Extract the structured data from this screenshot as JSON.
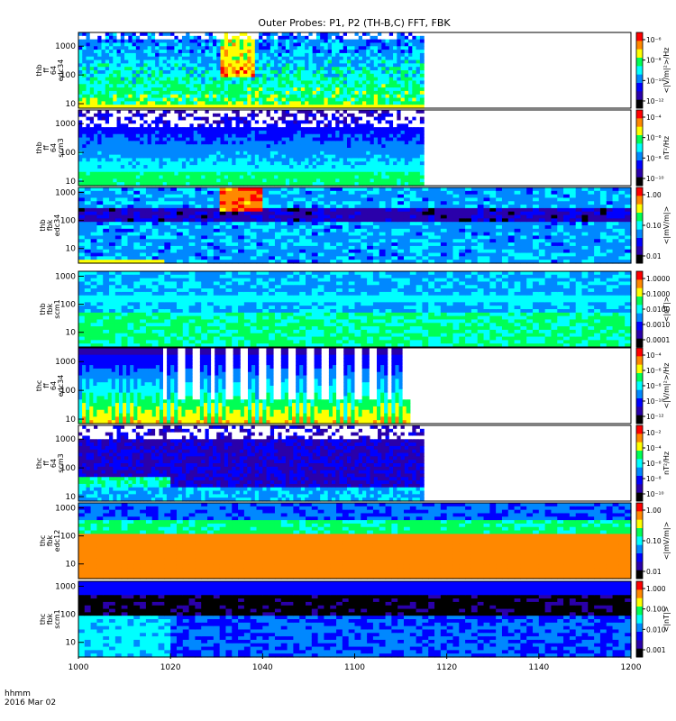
{
  "chart_data": {
    "type": "heatmap",
    "title": "Outer Probes: P1, P2 (TH-B,C) FFT, FBK",
    "time_axis": {
      "ticks": [
        "1000",
        "1020",
        "1040",
        "1100",
        "1120",
        "1140",
        "1200"
      ],
      "label_line1": "hhmm",
      "label_line2": "2016 Mar 02",
      "range_minutes": [
        0,
        120
      ]
    },
    "panels": [
      {
        "label": [
          "thb",
          "ff",
          "64",
          "edc34"
        ],
        "yticks": [
          "1000",
          "100",
          "10"
        ],
        "ylog": [
          7,
          3000
        ],
        "cb_unit": "<|V/m|²>/Hz",
        "cb_ticks": [
          "10⁻⁶",
          "10⁻⁸",
          "10⁻¹⁰",
          "10⁻¹²"
        ],
        "data_end_minute": 75,
        "pattern": "fft_e_b"
      },
      {
        "label": [
          "thb",
          "ff",
          "64",
          "scm3"
        ],
        "yticks": [
          "1000",
          "100",
          "10"
        ],
        "ylog": [
          7,
          3000
        ],
        "cb_unit": "nT²/Hz",
        "cb_ticks": [
          "10⁻⁴",
          "10⁻⁶",
          "10⁻⁸",
          "10⁻¹⁰"
        ],
        "data_end_minute": 75,
        "pattern": "fft_b_b"
      },
      {
        "label": [
          "thb",
          "fbk",
          "edc34"
        ],
        "yticks": [
          "1000",
          "100",
          "10"
        ],
        "ylog": [
          3,
          1500
        ],
        "cb_unit": "<|mV/m|>",
        "cb_ticks": [
          "1.00",
          "0.10",
          "0.01"
        ],
        "data_end_minute": 120,
        "pattern": "fbk_e_b"
      },
      {
        "label": [
          "thb",
          "fbk",
          "scm1"
        ],
        "yticks": [
          "1000",
          "100",
          "10"
        ],
        "ylog": [
          3,
          1500
        ],
        "cb_unit": "<|nT|>",
        "cb_ticks": [
          "1.0000",
          "0.1000",
          "0.0100",
          "0.0010",
          "0.0001"
        ],
        "data_end_minute": 120,
        "pattern": "fbk_b_b"
      },
      {
        "label": [
          "thc",
          "ff",
          "64",
          "edc34"
        ],
        "yticks": [
          "1000",
          "100",
          "10"
        ],
        "ylog": [
          7,
          3000
        ],
        "cb_unit": "<|V/m|²>/Hz",
        "cb_ticks": [
          "10⁻⁴",
          "10⁻⁶",
          "10⁻⁸",
          "10⁻¹⁰",
          "10⁻¹²"
        ],
        "data_end_minute": 72,
        "pattern": "fft_e_c"
      },
      {
        "label": [
          "thc",
          "ff",
          "64",
          "scm3"
        ],
        "yticks": [
          "1000",
          "100",
          "10"
        ],
        "ylog": [
          7,
          3000
        ],
        "cb_unit": "nT²/Hz",
        "cb_ticks": [
          "10⁻²",
          "10⁻⁴",
          "10⁻⁶",
          "10⁻⁸",
          "10⁻¹⁰"
        ],
        "data_end_minute": 75,
        "pattern": "fft_b_c"
      },
      {
        "label": [
          "thc",
          "fbk",
          "edc12"
        ],
        "yticks": [
          "1000",
          "100",
          "10"
        ],
        "ylog": [
          3,
          1500
        ],
        "cb_unit": "<|mV/m|>",
        "cb_ticks": [
          "1.00",
          "0.10",
          "0.01"
        ],
        "data_end_minute": 120,
        "pattern": "fbk_e_c"
      },
      {
        "label": [
          "thc",
          "fbk",
          "scm1"
        ],
        "yticks": [
          "1000",
          "100",
          "10"
        ],
        "ylog": [
          3,
          1500
        ],
        "cb_unit": "<|nT|>",
        "cb_ticks": [
          "1.000",
          "0.100",
          "0.010",
          "0.001"
        ],
        "data_end_minute": 120,
        "pattern": "fbk_b_c"
      }
    ],
    "colorbar_colors": [
      "#ff0000",
      "#ff8800",
      "#ffff00",
      "#00ff55",
      "#00ffff",
      "#0088ff",
      "#0000ff",
      "#2a00aa",
      "#000000"
    ]
  }
}
